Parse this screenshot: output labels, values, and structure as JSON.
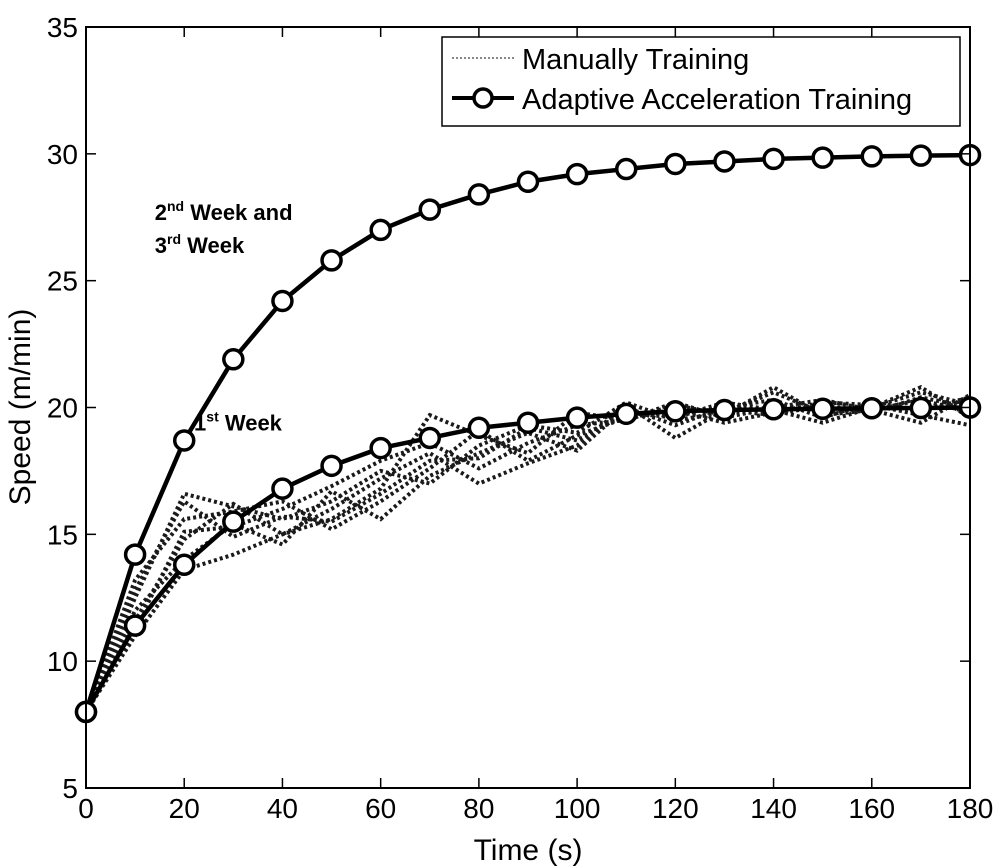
{
  "chart_data": {
    "type": "line",
    "title": "",
    "xlabel": "Time (s)",
    "ylabel": "Speed (m/min)",
    "xlim": [
      0,
      180
    ],
    "ylim": [
      5,
      35
    ],
    "xticks": [
      0,
      20,
      40,
      60,
      80,
      100,
      120,
      140,
      160,
      180
    ],
    "yticks": [
      5,
      10,
      15,
      20,
      25,
      30,
      35
    ],
    "grid": false,
    "legend": {
      "position": "top-right",
      "entries": [
        "Manually Training",
        "Adaptive Acceleration Training"
      ]
    },
    "x": [
      0,
      10,
      20,
      30,
      40,
      50,
      60,
      70,
      80,
      90,
      100,
      110,
      120,
      130,
      140,
      150,
      160,
      170,
      180
    ],
    "series": [
      {
        "name": "Adaptive Acceleration Training (2nd Week and 3rd Week)",
        "style": "solid-circle",
        "values": [
          8.0,
          14.2,
          18.7,
          21.9,
          24.2,
          25.8,
          27.0,
          27.8,
          28.4,
          28.9,
          29.2,
          29.4,
          29.6,
          29.7,
          29.8,
          29.85,
          29.9,
          29.93,
          29.95
        ]
      },
      {
        "name": "Adaptive Acceleration Training (1st Week)",
        "style": "solid-circle",
        "values": [
          8.0,
          11.4,
          13.8,
          15.5,
          16.8,
          17.7,
          18.4,
          18.8,
          19.2,
          19.4,
          19.6,
          19.75,
          19.85,
          19.9,
          19.93,
          19.95,
          19.97,
          19.98,
          20.0
        ]
      },
      {
        "name": "Manually Training trial 1",
        "style": "dotted",
        "values": [
          8.0,
          12.5,
          16.6,
          16.1,
          15.6,
          16.3,
          17.5,
          17.0,
          18.5,
          19.3,
          19.0,
          20.2,
          19.5,
          19.8,
          20.6,
          19.8,
          20.0,
          20.8,
          19.6
        ]
      },
      {
        "name": "Manually Training trial 2",
        "style": "dotted",
        "values": [
          8.0,
          11.0,
          13.6,
          14.2,
          15.0,
          15.6,
          16.8,
          19.7,
          18.9,
          18.2,
          19.8,
          19.5,
          20.2,
          19.6,
          20.0,
          20.3,
          19.9,
          19.4,
          20.5
        ]
      },
      {
        "name": "Manually Training trial 3",
        "style": "dotted",
        "values": [
          8.0,
          11.6,
          14.8,
          16.2,
          15.0,
          16.0,
          17.2,
          18.2,
          17.0,
          17.8,
          18.5,
          20.1,
          18.8,
          19.9,
          19.7,
          20.1,
          19.8,
          20.4,
          20.0
        ]
      },
      {
        "name": "Manually Training trial 4",
        "style": "dotted",
        "values": [
          8.0,
          13.2,
          15.6,
          15.9,
          16.3,
          15.2,
          16.3,
          17.6,
          19.1,
          17.9,
          18.9,
          19.6,
          19.9,
          19.4,
          19.8,
          20.2,
          20.1,
          19.7,
          19.3
        ]
      },
      {
        "name": "Manually Training trial 5",
        "style": "dotted",
        "values": [
          8.0,
          12.0,
          14.0,
          15.4,
          14.6,
          16.7,
          15.6,
          17.3,
          18.2,
          19.0,
          18.3,
          20.0,
          19.3,
          20.0,
          20.3,
          19.6,
          20.2,
          19.9,
          20.4
        ]
      },
      {
        "name": "Manually Training trial 6",
        "style": "dotted",
        "values": [
          8.0,
          11.3,
          15.1,
          15.3,
          16.0,
          16.9,
          17.9,
          18.6,
          17.6,
          18.6,
          19.3,
          19.5,
          20.1,
          19.7,
          20.8,
          19.7,
          19.9,
          20.3,
          19.8
        ]
      },
      {
        "name": "Manually Training trial 7",
        "style": "dotted",
        "values": [
          8.0,
          12.8,
          16.3,
          14.9,
          15.7,
          15.5,
          16.6,
          17.9,
          18.0,
          19.2,
          18.7,
          19.8,
          19.6,
          20.2,
          19.9,
          19.4,
          20.0,
          20.6,
          20.1
        ]
      }
    ],
    "annotations": [
      {
        "text": "2",
        "sup": "nd",
        "rest": " Week and",
        "x": 14,
        "y": 27.4
      },
      {
        "text": "3",
        "sup": "rd",
        "rest": " Week",
        "x": 14,
        "y": 26.1
      },
      {
        "text": "1",
        "sup": "st",
        "rest": " Week",
        "x": 22,
        "y": 19.1
      }
    ]
  }
}
